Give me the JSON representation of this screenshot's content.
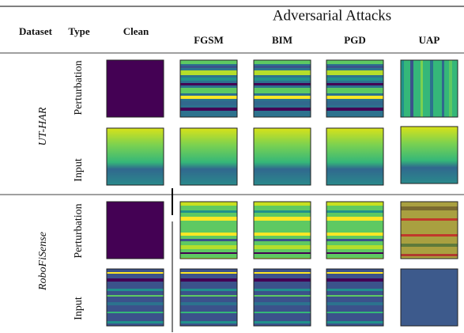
{
  "header": {
    "dataset": "Dataset",
    "type": "Type",
    "clean": "Clean",
    "group": "Adversarial Attacks",
    "attacks": [
      "FGSM",
      "BIM",
      "PGD",
      "UAP"
    ]
  },
  "rows": [
    {
      "dataset": "UT-HAR",
      "types": [
        "Perturbation",
        "Input"
      ]
    },
    {
      "dataset": "RoboFiSense",
      "types": [
        "Perturbation",
        "Input"
      ]
    }
  ]
}
